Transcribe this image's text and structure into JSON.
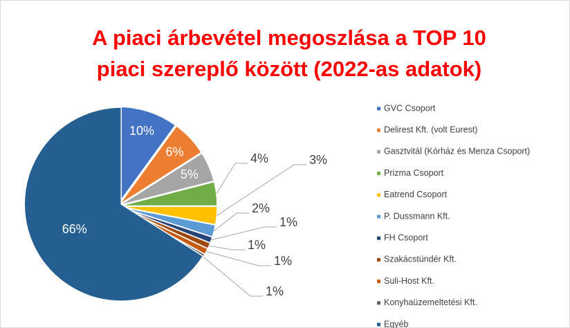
{
  "chart_data": {
    "type": "pie",
    "title": [
      "A piaci árbevétel megoszlása a TOP 10",
      "piaci szereplő között (2022-as adatok)"
    ],
    "categories": [
      "GVC Csoport",
      "Delirest Kft. (volt Eurest)",
      "Gasztvitál (Kórház és Menza Csoport)",
      "Prizma Csoport",
      "Eatrend Csoport",
      "P. Dussmann Kft.",
      "FH Csoport",
      "Szakácstündér Kft.",
      "Suli-Host Kft.",
      "Konyhaüzemeltetési Kft.",
      "Egyéb"
    ],
    "values": [
      10,
      6,
      5,
      4,
      3,
      2,
      1,
      1,
      1,
      1,
      66
    ],
    "value_labels": [
      "10%",
      "6%",
      "5%",
      "4%",
      "3%",
      "2%",
      "1%",
      "1%",
      "1%",
      "1%",
      "66%"
    ],
    "colors": [
      "#4472c4",
      "#ed7d31",
      "#a5a5a5",
      "#70ad47",
      "#ffc000",
      "#5b9bd5",
      "#264478",
      "#9e480e",
      "#c55a11",
      "#636363",
      "#255e91"
    ],
    "legend": "right"
  }
}
